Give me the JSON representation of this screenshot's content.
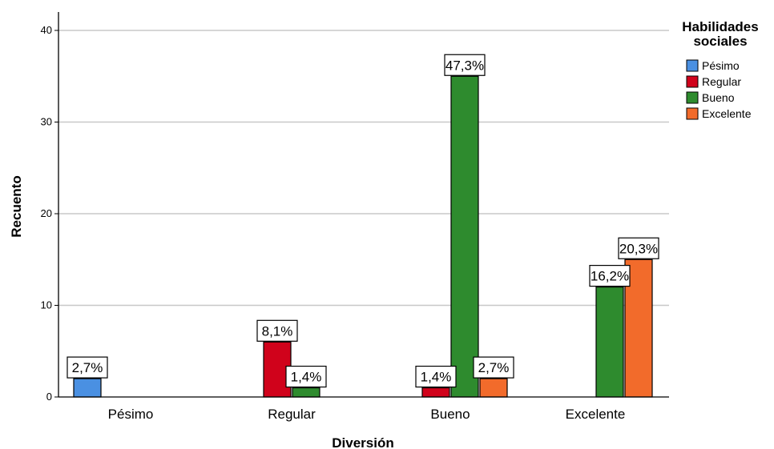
{
  "chart_data": {
    "type": "bar",
    "xlabel": "Diversión",
    "ylabel": "Recuento",
    "categories": [
      "Pésimo",
      "Regular",
      "Bueno",
      "Excelente"
    ],
    "ylim": [
      0,
      40
    ],
    "yticks": [
      "0",
      "10",
      "20",
      "30",
      "40"
    ],
    "grid": true,
    "legend": {
      "title_line1": "Habilidades",
      "title_line2": "sociales",
      "position": "right"
    },
    "series": [
      {
        "name": "Pésimo",
        "color": "#4a90e2",
        "values": [
          2,
          0,
          0,
          0
        ],
        "labels": [
          "2,7%",
          "",
          "",
          ""
        ]
      },
      {
        "name": "Regular",
        "color": "#d0021b",
        "values": [
          0,
          6,
          1,
          0
        ],
        "labels": [
          "",
          "8,1%",
          "1,4%",
          ""
        ]
      },
      {
        "name": "Bueno",
        "color": "#2e8b2e",
        "values": [
          0,
          1,
          35,
          12
        ],
        "labels": [
          "",
          "1,4%",
          "47,3%",
          "16,2%"
        ]
      },
      {
        "name": "Excelente",
        "color": "#f26b2b",
        "values": [
          0,
          0,
          2,
          15
        ],
        "labels": [
          "",
          "",
          "2,7%",
          "20,3%"
        ]
      }
    ]
  }
}
